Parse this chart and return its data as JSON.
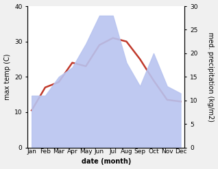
{
  "months": [
    "Jan",
    "Feb",
    "Mar",
    "Apr",
    "May",
    "Jun",
    "Jul",
    "Aug",
    "Sep",
    "Oct",
    "Nov",
    "Dec"
  ],
  "max_temp": [
    10.5,
    17.0,
    18.5,
    24.0,
    23.0,
    29.0,
    31.0,
    30.0,
    25.0,
    19.0,
    13.5,
    13.0
  ],
  "precipitation": [
    11.0,
    11.0,
    15.0,
    17.0,
    22.0,
    28.0,
    28.0,
    18.0,
    13.0,
    20.0,
    13.0,
    11.5
  ],
  "temp_color": "#c0392b",
  "precip_fill_color": "#b8c4f0",
  "ylabel_left": "max temp (C)",
  "ylabel_right": "med. precipitation (kg/m2)",
  "xlabel": "date (month)",
  "ylim_left": [
    0,
    40
  ],
  "ylim_right": [
    0,
    30
  ],
  "yticks_left": [
    0,
    10,
    20,
    30,
    40
  ],
  "yticks_right": [
    0,
    5,
    10,
    15,
    20,
    25,
    30
  ],
  "bg_color": "#f0f0f0",
  "plot_bg_color": "#ffffff",
  "temp_linewidth": 1.8,
  "label_fontsize": 7,
  "tick_fontsize": 6.5
}
